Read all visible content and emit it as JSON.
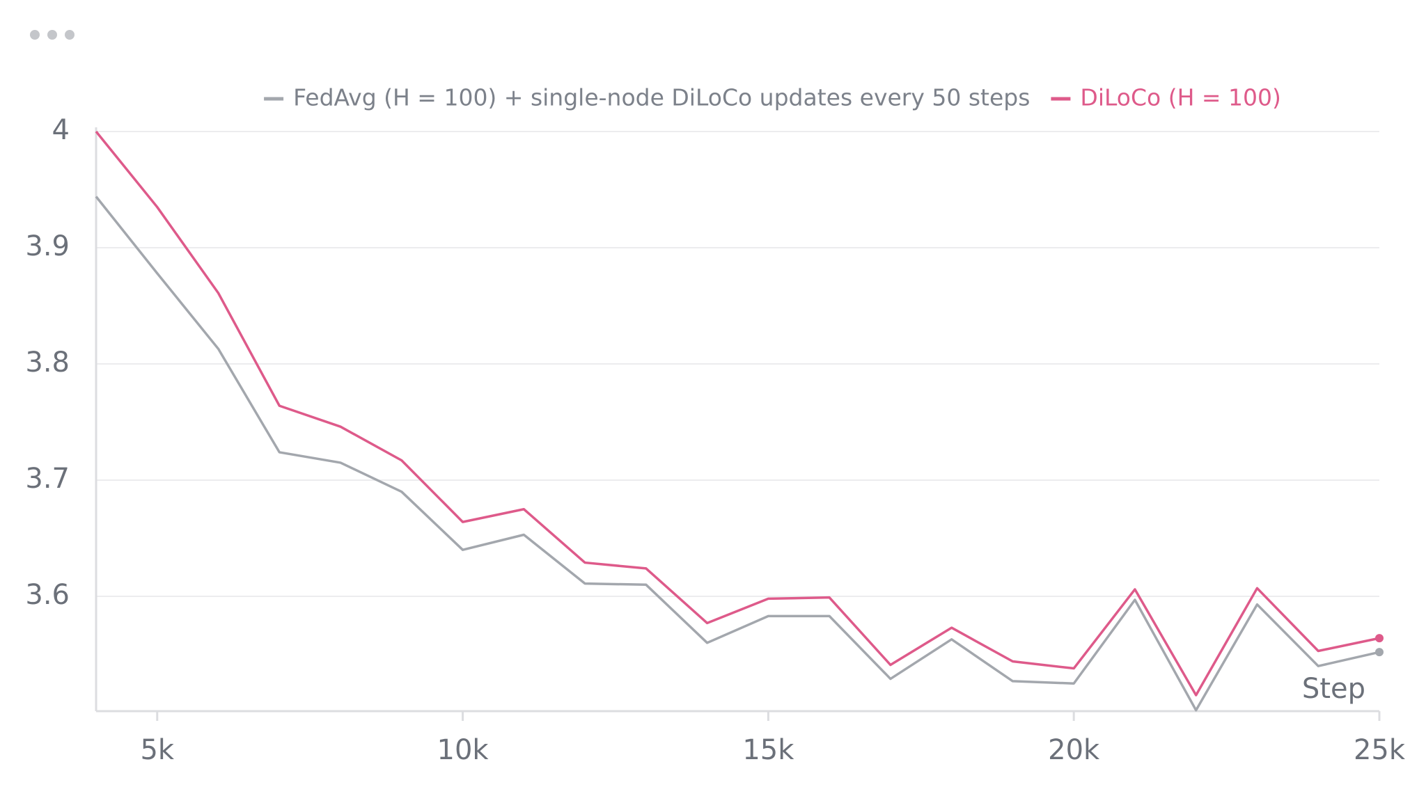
{
  "chart_data": {
    "type": "line",
    "x_label": "Step",
    "x": [
      4000,
      5000,
      6000,
      7000,
      8000,
      9000,
      10000,
      11000,
      12000,
      13000,
      14000,
      15000,
      16000,
      17000,
      18000,
      19000,
      20000,
      21000,
      22000,
      23000,
      24000,
      25000
    ],
    "series": [
      {
        "name": "FedAvg (H = 100) + single-node DiLoCo updates every 50 steps",
        "color": "#a3a7ad",
        "values": [
          3.944,
          3.878,
          3.813,
          3.724,
          3.715,
          3.69,
          3.64,
          3.653,
          3.611,
          3.61,
          3.56,
          3.583,
          3.583,
          3.529,
          3.563,
          3.527,
          3.525,
          3.597,
          3.502,
          3.593,
          3.54,
          3.552
        ]
      },
      {
        "name": "DiLoCo (H = 100)",
        "color": "#de5a8a",
        "values": [
          4.0,
          3.935,
          3.861,
          3.764,
          3.746,
          3.717,
          3.664,
          3.675,
          3.629,
          3.624,
          3.577,
          3.598,
          3.599,
          3.541,
          3.573,
          3.544,
          3.538,
          3.606,
          3.515,
          3.607,
          3.553,
          3.564
        ]
      }
    ],
    "xlim": [
      4000,
      25000
    ],
    "xticks": [
      {
        "value": 5000,
        "label": "5k"
      },
      {
        "value": 10000,
        "label": "10k"
      },
      {
        "value": 15000,
        "label": "15k"
      },
      {
        "value": 20000,
        "label": "20k"
      },
      {
        "value": 25000,
        "label": "25k"
      }
    ],
    "ylim": [
      3.5,
      4.0
    ],
    "yticks": [
      3.6,
      3.7,
      3.8,
      3.9,
      4
    ],
    "grid": true,
    "legend": "top"
  }
}
